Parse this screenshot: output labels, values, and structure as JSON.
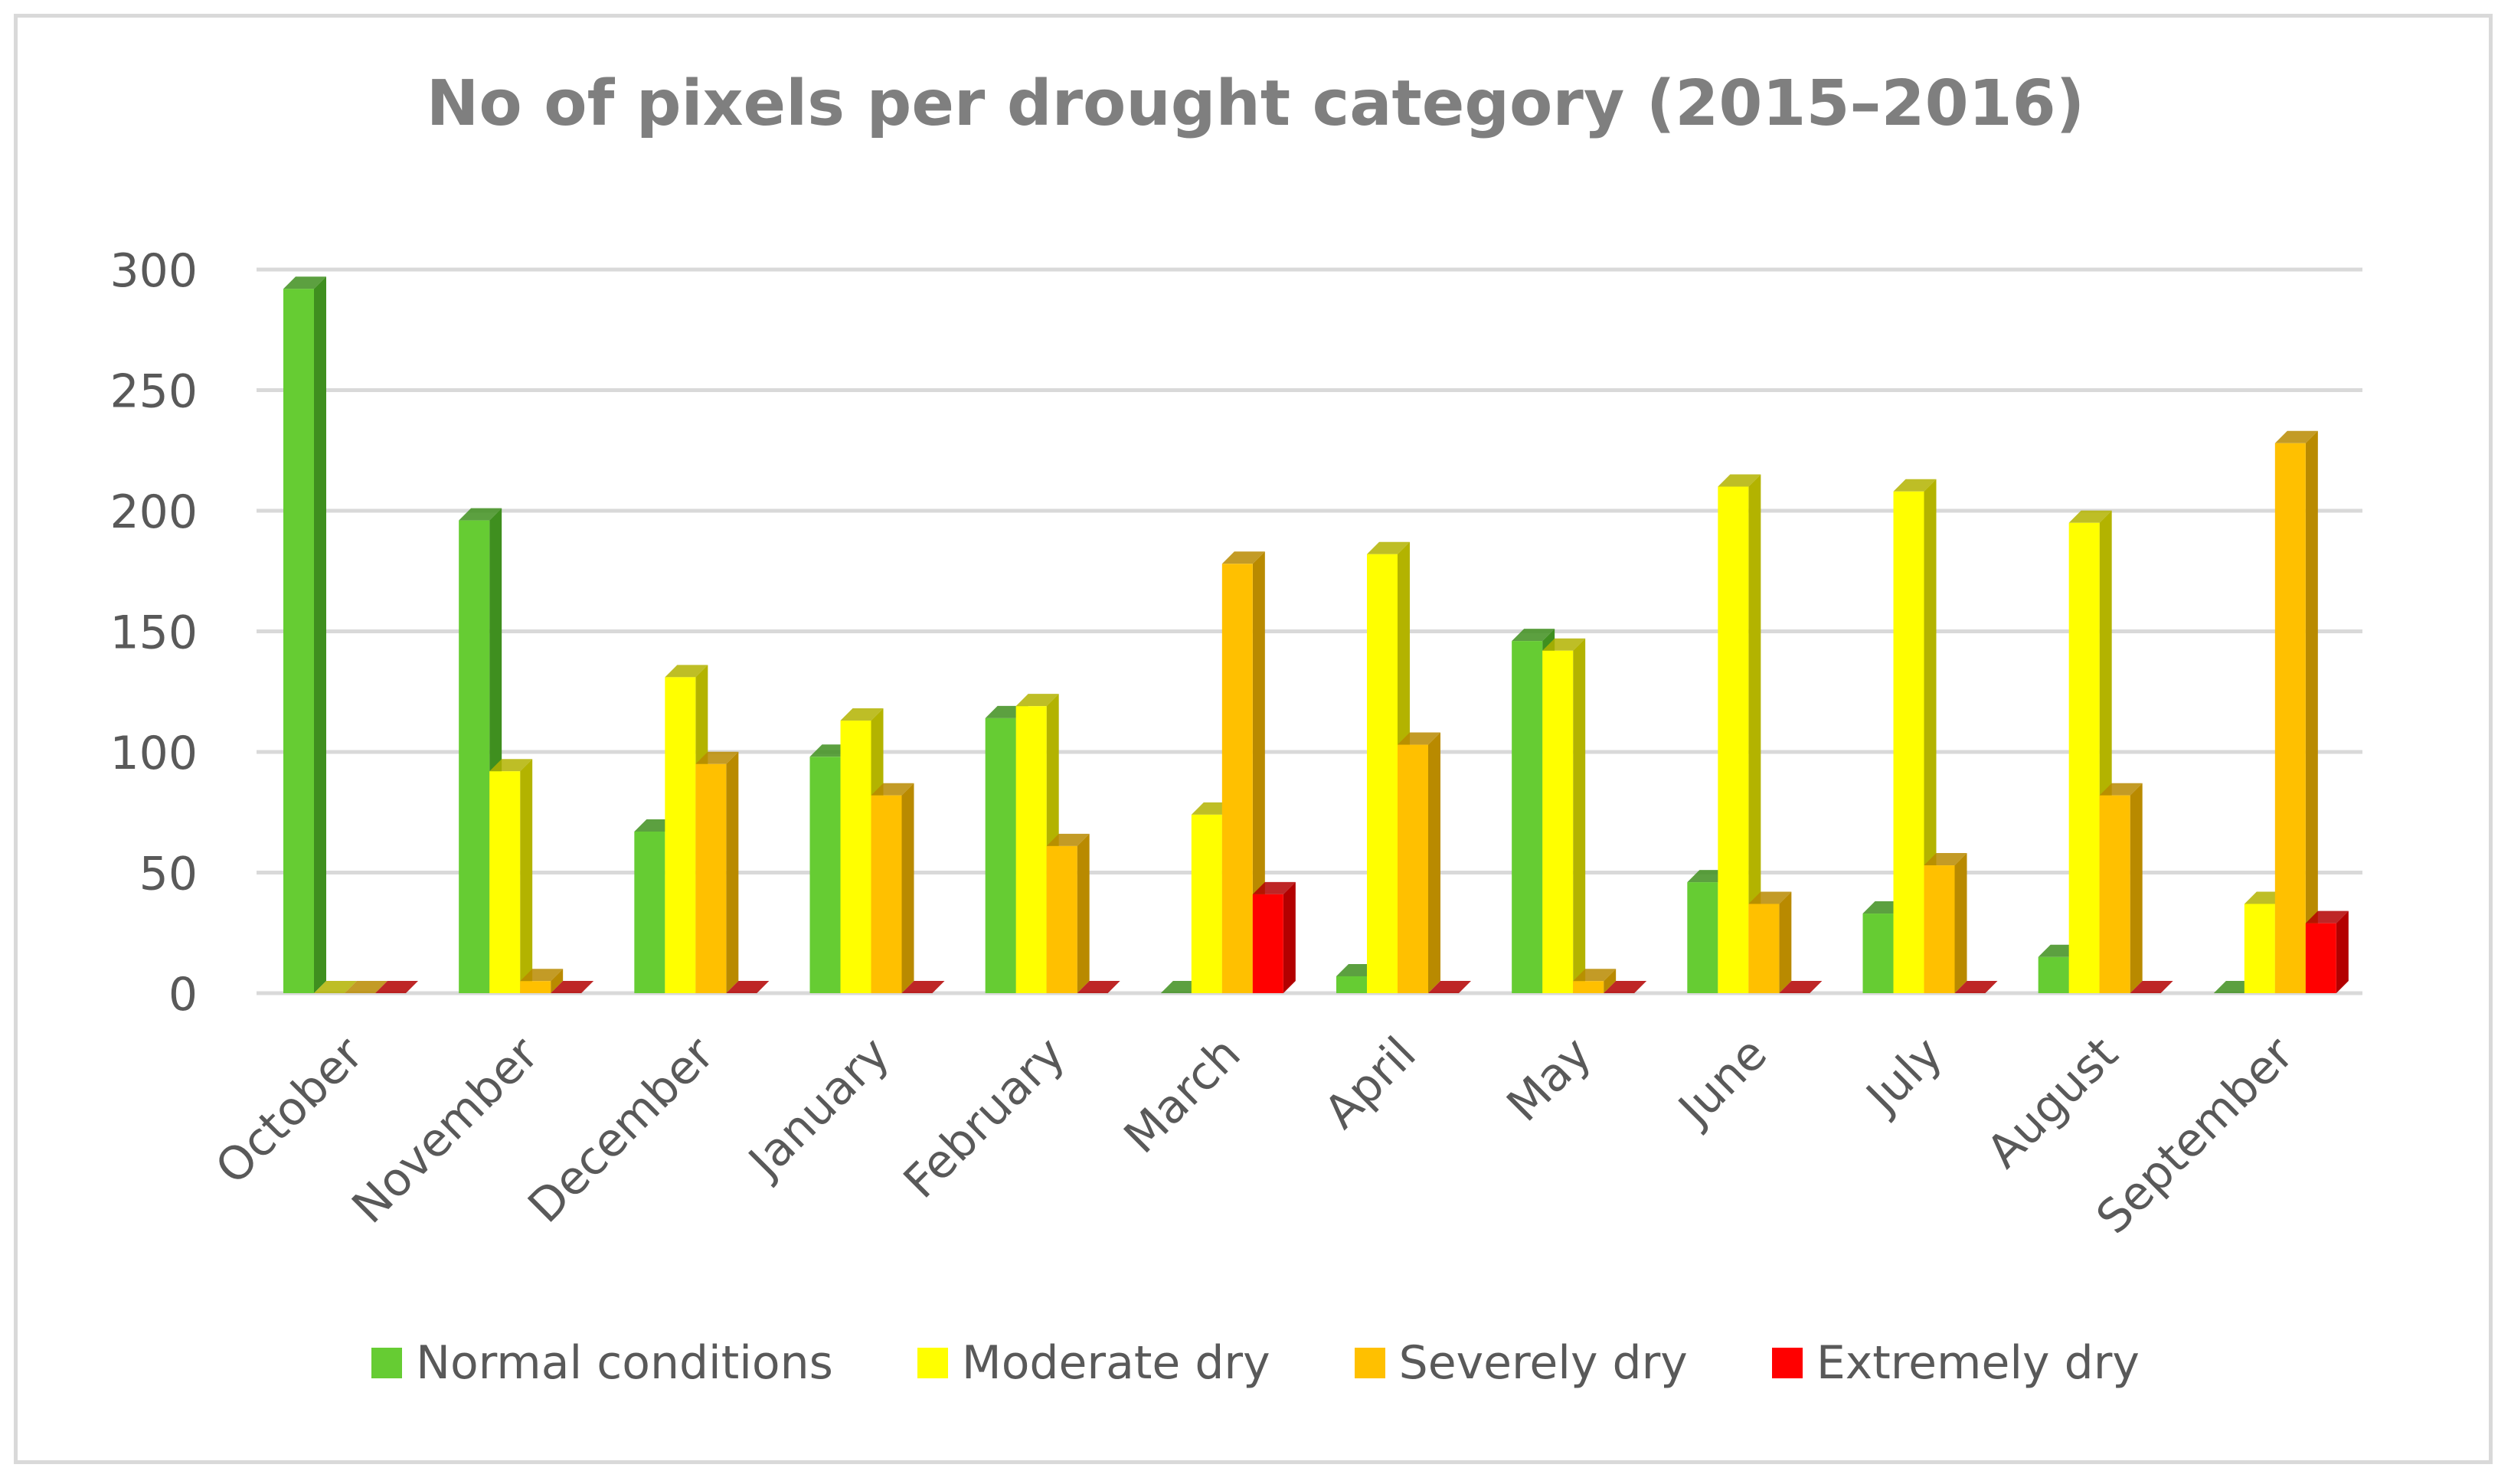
{
  "chart_data": {
    "type": "bar",
    "title": "No of pixels per drought category (2015–2016)",
    "xlabel": "",
    "ylabel": "",
    "ylim": [
      0,
      300
    ],
    "yticks": [
      0,
      50,
      100,
      150,
      200,
      250,
      300
    ],
    "grid": true,
    "legend_position": "bottom",
    "categories": [
      "October",
      "November",
      "December",
      "January",
      "February",
      "March",
      "April",
      "May",
      "June",
      "July",
      "August",
      "September"
    ],
    "series": [
      {
        "name": "Normal conditions",
        "color": "#66cc33",
        "side": "#3f8f1f",
        "values": [
          292,
          196,
          67,
          98,
          114,
          0,
          7,
          146,
          46,
          33,
          15,
          0
        ]
      },
      {
        "name": "Moderate dry",
        "color": "#ffff00",
        "side": "#b3b300",
        "values": [
          0,
          92,
          131,
          113,
          119,
          74,
          182,
          142,
          210,
          208,
          195,
          37
        ]
      },
      {
        "name": "Severely dry",
        "color": "#ffc000",
        "side": "#b98a00",
        "values": [
          0,
          5,
          95,
          82,
          61,
          178,
          103,
          5,
          37,
          53,
          82,
          228
        ]
      },
      {
        "name": "Extremely dry",
        "color": "#ff0000",
        "side": "#b30000",
        "values": [
          0,
          0,
          0,
          0,
          0,
          41,
          0,
          0,
          0,
          0,
          0,
          29
        ]
      }
    ]
  }
}
